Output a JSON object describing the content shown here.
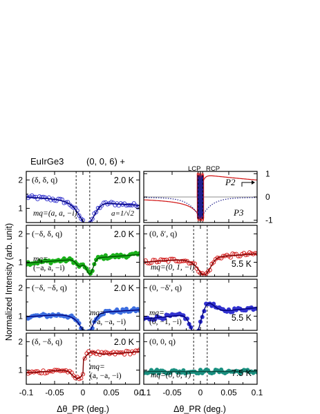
{
  "figure": {
    "ylabel": "Normalized Intensity  (arb. unit)",
    "xlabel_left": "Δθ_PR  (deg.)",
    "xlabel_right": "Δθ_PR  (deg.)",
    "left_header_material": "EuIrGe3",
    "left_header_reflection": "(0, 0, 6) +",
    "right_header_lcp": "LCP",
    "right_header_rcp": "RCP",
    "x_ticks": [
      "-0.1",
      "-0.05",
      "0",
      "0.05",
      "0.1"
    ],
    "y_ticks_left": [
      "1",
      "2"
    ],
    "y_ticks_right_top": [
      "1",
      "0",
      "-1"
    ]
  },
  "chart_data": [
    {
      "id": "L1",
      "type": "scatter",
      "xlim": [
        -0.1,
        0.1
      ],
      "ylim": [
        0.5,
        2.3
      ],
      "marker_color": "#3b3bd0",
      "fit_color": "#00007a",
      "marker": "open-circle",
      "label": "(δ, δ, q)",
      "temp": "2.0 K",
      "model_lines": [
        "mq=(a, a, −i)"
      ],
      "extra_note": "a=1/√2",
      "dashed_x": [
        -0.012,
        0.012
      ],
      "fit": {
        "base": 1.25,
        "slope": -1.5,
        "feature": "dip-rise",
        "depth": 0.65,
        "width": 0.012
      }
    },
    {
      "id": "L2",
      "type": "scatter",
      "xlim": [
        -0.1,
        0.1
      ],
      "ylim": [
        0.5,
        2.3
      ],
      "marker_color": "#1ab01a",
      "fit_color": "#005000",
      "marker": "filled-circle",
      "label": "(−δ, δ, q)",
      "temp": "2.0 K",
      "model_lines": [
        "mq=",
        "(−a, a, −i)"
      ],
      "dashed_x": [
        -0.012,
        0.012
      ],
      "fit": {
        "base": 1.12,
        "slope": 1.5,
        "feature": "double-dip",
        "depth": 0.55,
        "width": 0.006
      }
    },
    {
      "id": "L3",
      "type": "scatter",
      "xlim": [
        -0.1,
        0.1
      ],
      "ylim": [
        0.5,
        2.3
      ],
      "marker_color": "#3d6ee0",
      "fit_color": "#00007a",
      "marker": "filled-circle",
      "label": "(−δ, −δ, q)",
      "temp": "2.0 K",
      "model_lines": [
        "mq=",
        "(−a, −a, −i)"
      ],
      "dashed_x": [
        -0.012,
        0.012
      ],
      "fit": {
        "base": 1.1,
        "slope": 1.2,
        "feature": "dip-rise",
        "depth": 0.6,
        "width": 0.01
      }
    },
    {
      "id": "L4",
      "type": "scatter",
      "xlim": [
        -0.1,
        0.1
      ],
      "ylim": [
        0.5,
        2.3
      ],
      "marker_color": "#d42020",
      "fit_color": "#7a0000",
      "marker": "open-circle",
      "label": "(δ, −δ, q)",
      "temp": "2.0 K",
      "model_lines": [
        "mq=",
        "(a, −a, −i)"
      ],
      "dashed_x": [
        -0.012,
        0.012
      ],
      "fit": {
        "base": 1.05,
        "slope": 1.5,
        "feature": "step-up",
        "depth": 0.5,
        "width": 0.01
      }
    },
    {
      "id": "R1",
      "type": "line",
      "xlim": [
        -0.1,
        0.1
      ],
      "ylim": [
        -1.1,
        1.1
      ],
      "series": [
        {
          "name": "P2",
          "color": "#d01010",
          "style": "solid"
        },
        {
          "name": "P3",
          "color": "#1a1a8a",
          "style": "dotted"
        }
      ],
      "label_p2": "P2",
      "label_p3": "P3",
      "lcp_x": -0.004,
      "rcp_x": 0.004
    },
    {
      "id": "R2",
      "type": "scatter",
      "xlim": [
        -0.1,
        0.1
      ],
      "ylim": [
        0.5,
        2.3
      ],
      "marker_color": "#d42020",
      "fit_color": "#7a0000",
      "marker": "open-circle",
      "label": "(0, δ′, q)",
      "temp": "5.5 K",
      "model_lines": [
        "mq=(0, 1, −i)"
      ],
      "dashed_x": [
        -0.012,
        0.012
      ],
      "fit": {
        "base": 1.15,
        "slope": 1.5,
        "feature": "dip-rise",
        "depth": 0.5,
        "width": 0.01
      }
    },
    {
      "id": "R3",
      "type": "scatter",
      "xlim": [
        -0.1,
        0.1
      ],
      "ylim": [
        0.5,
        2.3
      ],
      "marker_color": "#3333d0",
      "fit_color": "#00007a",
      "marker": "filled-circle",
      "label": "(0, −δ′, q)",
      "temp": "5.5 K",
      "model_lines": [
        "mq=",
        "(0, −1, −i)"
      ],
      "dashed_x": [
        -0.012,
        0.012
      ],
      "fit": {
        "base": 1.1,
        "slope": 2.0,
        "feature": "dip-peak",
        "depth": 0.8,
        "width": 0.01
      }
    },
    {
      "id": "R4",
      "type": "scatter",
      "xlim": [
        -0.1,
        0.1
      ],
      "ylim": [
        0.5,
        2.3
      ],
      "marker_color": "#1a9080",
      "fit_color": "#0a4a40",
      "marker": "filled-circle",
      "label": "(0, 0, q)",
      "temp": "7.5 K",
      "model_lines": [
        "mq=(0, 0, 1)"
      ],
      "dashed_x": [
        -0.012,
        0.012
      ],
      "fit": {
        "base": 0.95,
        "slope": 0.0,
        "feature": "flat",
        "depth": 0.0,
        "width": 0.01
      }
    }
  ]
}
